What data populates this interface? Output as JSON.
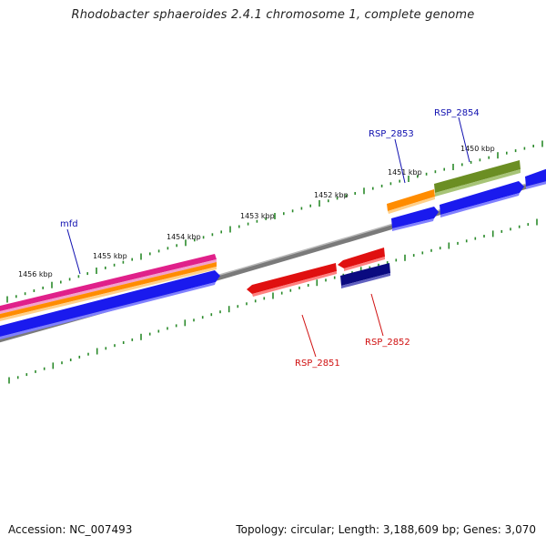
{
  "title": "Rhodobacter sphaeroides 2.4.1 chromosome 1, complete genome",
  "colors": {
    "forward_gene": "#1a1aee",
    "reverse_gene": "#e01010",
    "reverse_gene_dark": "#0a0a80",
    "backbone": "#7a7a7a",
    "ticks": "#2a8a2a",
    "pink_track": "#e0208a",
    "orange_track": "#ff8c00",
    "olive_track": "#6b8e23",
    "forward_label": "#1010b0",
    "reverse_label": "#d01010"
  },
  "position_ticks": [
    "1456 kbp",
    "1455 kbp",
    "1454 kbp",
    "1453 kbp",
    "1452 kbp",
    "1451 kbp",
    "1450 kbp"
  ],
  "gene_labels": {
    "mfd": "mfd",
    "rsp_2853": "RSP_2853",
    "rsp_2854": "RSP_2854",
    "rsp_2851": "RSP_2851",
    "rsp_2852": "RSP_2852"
  },
  "footer": {
    "accession": "Accession: NC_007493",
    "stats": "Topology: circular; Length: 3,188,609 bp; Genes: 3,070"
  }
}
